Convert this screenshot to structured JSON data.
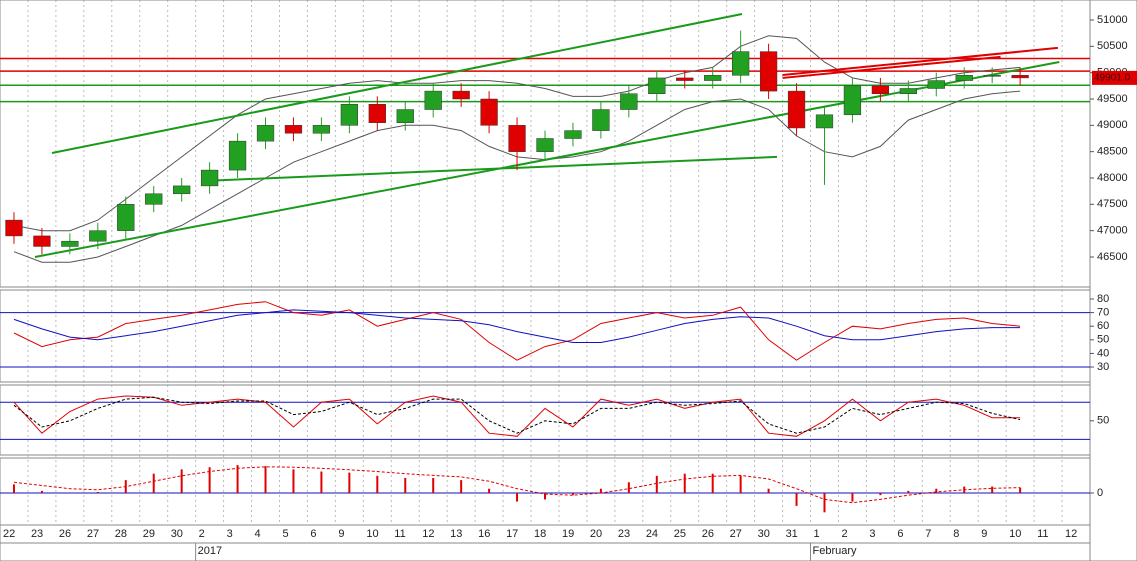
{
  "chart_data": [
    {
      "type": "candlestick",
      "categories": [
        "22",
        "23",
        "26",
        "27",
        "28",
        "29",
        "30",
        "2",
        "3",
        "4",
        "5",
        "6",
        "9",
        "10",
        "11",
        "12",
        "13",
        "16",
        "17",
        "18",
        "19",
        "20",
        "23",
        "24",
        "25",
        "26",
        "27",
        "30",
        "31",
        "1",
        "2",
        "3",
        "6",
        "7",
        "8",
        "9",
        "10",
        "11",
        "12"
      ],
      "period_labels": [
        {
          "text": "2017",
          "start": 7
        },
        {
          "text": "February",
          "start": 29
        }
      ],
      "open": [
        47200,
        46900,
        46700,
        46800,
        47000,
        47500,
        47700,
        47850,
        48150,
        48700,
        49000,
        48850,
        49000,
        49400,
        49050,
        49300,
        49650,
        49500,
        49000,
        48500,
        48750,
        48900,
        49300,
        49600,
        49900,
        49850,
        49950,
        50400,
        49650,
        48950,
        49200,
        49750,
        49600,
        49700,
        49850,
        49950,
        49950,
        null,
        null
      ],
      "high": [
        47350,
        47050,
        46950,
        47150,
        47650,
        47850,
        48000,
        48300,
        48850,
        49150,
        49150,
        49150,
        49550,
        49550,
        49450,
        49800,
        49800,
        49650,
        49150,
        48900,
        49050,
        49450,
        49750,
        50050,
        50050,
        50100,
        50800,
        50550,
        49800,
        49350,
        49900,
        49900,
        49850,
        50000,
        50100,
        50100,
        50100,
        null,
        null
      ],
      "low": [
        46750,
        46550,
        46550,
        46650,
        46850,
        47350,
        47550,
        47700,
        48000,
        48550,
        48700,
        48700,
        48850,
        48900,
        48900,
        49150,
        49350,
        48850,
        48150,
        48350,
        48600,
        48750,
        49150,
        49450,
        49700,
        49700,
        49800,
        49500,
        48800,
        47870,
        49050,
        49450,
        49450,
        49550,
        49700,
        49800,
        49750,
        null,
        null
      ],
      "close": [
        46900,
        46700,
        46800,
        47000,
        47500,
        47700,
        47850,
        48150,
        48700,
        49000,
        48850,
        49000,
        49400,
        49050,
        49300,
        49650,
        49500,
        49000,
        48500,
        48750,
        48900,
        49300,
        49600,
        49900,
        49850,
        49950,
        50400,
        49650,
        48950,
        49200,
        49750,
        49600,
        49700,
        49850,
        49950,
        49950,
        49901,
        null,
        null
      ],
      "up_color": "#22a022",
      "down_color": "#e00000",
      "bands": [
        {
          "color": "#555555",
          "values": [
            47100,
            47000,
            47000,
            47200,
            47600,
            48000,
            48400,
            48800,
            49200,
            49500,
            49600,
            49700,
            49800,
            49850,
            49800,
            49800,
            49850,
            49850,
            49800,
            49700,
            49550,
            49550,
            49650,
            49850,
            50000,
            50100,
            50500,
            50700,
            50650,
            50200,
            49900,
            49800,
            49800,
            49900,
            50000,
            50050,
            50100,
            null,
            null
          ]
        },
        {
          "color": "#555555",
          "values": [
            46600,
            46400,
            46400,
            46500,
            46700,
            46900,
            47100,
            47400,
            47700,
            48000,
            48300,
            48500,
            48700,
            48900,
            49000,
            49000,
            48900,
            48600,
            48400,
            48350,
            48400,
            48500,
            48700,
            49000,
            49300,
            49450,
            49500,
            49300,
            48800,
            48500,
            48400,
            48600,
            49100,
            49300,
            49500,
            49600,
            49650,
            null,
            null
          ]
        }
      ],
      "levels": [
        {
          "value": 50270,
          "color": "#e00000"
        },
        {
          "value": 50030,
          "color": "#e00000"
        },
        {
          "value": 49760,
          "color": "#1a9a1a"
        },
        {
          "value": 49450,
          "color": "#1a9a1a"
        }
      ],
      "trend_lines": [
        {
          "color": "#1a9a1a",
          "start": [
            1.36,
            48474
          ],
          "end": [
            26.05,
            51114
          ]
        },
        {
          "color": "#1a9a1a",
          "start": [
            0.75,
            46500
          ],
          "end": [
            37.4,
            50203
          ]
        },
        {
          "color": "#1a9a1a",
          "start": [
            6.76,
            47943
          ],
          "end": [
            27.3,
            48400
          ]
        },
        {
          "color": "#e00000",
          "start": [
            27.5,
            49956
          ],
          "end": [
            37.35,
            50470
          ]
        },
        {
          "color": "#e00000",
          "start": [
            27.5,
            49900
          ],
          "end": [
            35.3,
            50300
          ]
        }
      ],
      "last_price": {
        "value": 49901,
        "label": "49901.0"
      },
      "ylim": [
        45930,
        51380
      ],
      "yticks": [
        46500,
        47000,
        47500,
        48000,
        48500,
        49000,
        49500,
        50000,
        50500,
        51000
      ]
    },
    {
      "type": "line",
      "series": [
        {
          "color": "#e00000",
          "values": [
            55,
            45,
            50,
            52,
            62,
            65,
            68,
            72,
            76,
            78,
            70,
            68,
            72,
            60,
            65,
            70,
            65,
            48,
            35,
            45,
            50,
            62,
            66,
            70,
            66,
            68,
            74,
            50,
            35,
            48,
            60,
            58,
            62,
            65,
            66,
            62,
            60,
            null,
            null
          ]
        },
        {
          "color": "#1010c0",
          "values": [
            65,
            58,
            52,
            50,
            53,
            56,
            60,
            64,
            68,
            70,
            72,
            71,
            70,
            68,
            66,
            65,
            64,
            61,
            56,
            52,
            48,
            48,
            52,
            57,
            62,
            65,
            67,
            66,
            60,
            53,
            50,
            50,
            53,
            56,
            58,
            59,
            59,
            null,
            null
          ]
        }
      ],
      "levels": [
        {
          "value": 70,
          "color": "#1010c0"
        },
        {
          "value": 30,
          "color": "#1010c0"
        }
      ],
      "ylim": [
        19,
        86.6
      ],
      "yticks": [
        30,
        40,
        50,
        60,
        70,
        80
      ]
    },
    {
      "type": "line",
      "series": [
        {
          "color": "#e00000",
          "values": [
            80,
            30,
            65,
            85,
            90,
            88,
            75,
            80,
            85,
            80,
            40,
            80,
            85,
            45,
            80,
            90,
            80,
            30,
            25,
            70,
            40,
            85,
            75,
            85,
            70,
            80,
            85,
            30,
            25,
            50,
            85,
            50,
            80,
            85,
            75,
            55,
            55,
            null,
            null
          ]
        },
        {
          "color": "#000000",
          "dashed": true,
          "values": [
            75,
            40,
            50,
            70,
            85,
            88,
            80,
            78,
            82,
            82,
            60,
            65,
            80,
            60,
            70,
            85,
            85,
            50,
            30,
            50,
            45,
            70,
            70,
            80,
            75,
            78,
            82,
            45,
            30,
            40,
            70,
            60,
            70,
            80,
            78,
            62,
            52,
            null,
            null
          ]
        }
      ],
      "levels": [
        {
          "value": 80,
          "color": "#1010c0"
        },
        {
          "value": 20,
          "color": "#1010c0"
        }
      ],
      "ylim": [
        -5.2,
        107.8
      ],
      "yticks": [
        50
      ]
    },
    {
      "type": "bar",
      "values": [
        40,
        10,
        0,
        5,
        60,
        90,
        110,
        120,
        130,
        125,
        110,
        100,
        95,
        80,
        70,
        70,
        60,
        20,
        -40,
        -30,
        -10,
        20,
        50,
        80,
        90,
        90,
        80,
        20,
        -60,
        -90,
        -40,
        -10,
        10,
        20,
        30,
        30,
        25,
        null,
        null
      ],
      "color": "#e00000",
      "series": [
        {
          "color": "#e00000",
          "dashed": true,
          "values": [
            50,
            35,
            20,
            15,
            30,
            55,
            80,
            100,
            115,
            122,
            120,
            115,
            108,
            100,
            90,
            82,
            75,
            55,
            20,
            -5,
            -10,
            0,
            20,
            45,
            65,
            78,
            82,
            65,
            20,
            -30,
            -45,
            -30,
            -10,
            5,
            15,
            22,
            25,
            null,
            null
          ]
        }
      ],
      "levels": [
        {
          "value": 0,
          "color": "#1010c0"
        }
      ],
      "ylim": [
        -149,
        163
      ],
      "yticks": [
        0
      ]
    }
  ]
}
